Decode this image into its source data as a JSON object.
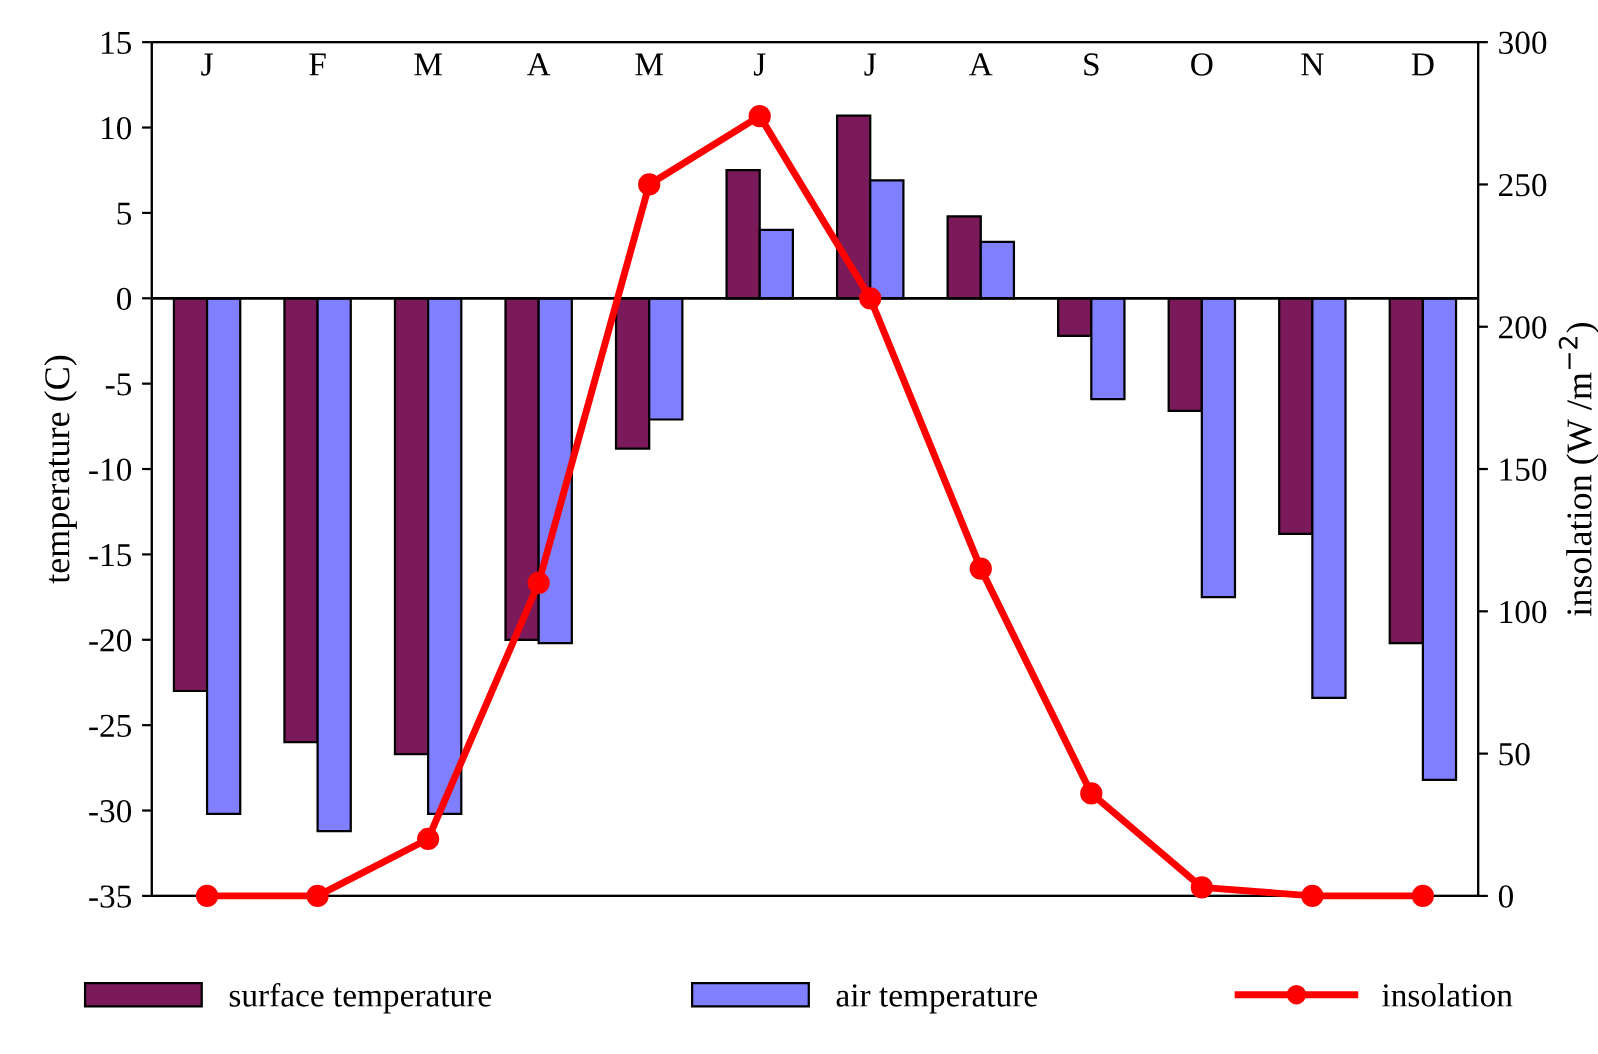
{
  "chart_data": {
    "type": "bar",
    "categories": [
      "J",
      "F",
      "M",
      "A",
      "M",
      "J",
      "J",
      "A",
      "S",
      "O",
      "N",
      "D"
    ],
    "series": [
      {
        "name": "surface temperature",
        "color": "#7b1a5a",
        "values": [
          -23,
          -26,
          -26.7,
          -20,
          -8.8,
          7.5,
          10.7,
          4.8,
          -2.2,
          -6.6,
          -13.8,
          -20.2
        ]
      },
      {
        "name": "air temperature",
        "color": "#7f7fff",
        "values": [
          -30.2,
          -31.2,
          -30.2,
          -20.2,
          -7.1,
          4,
          6.9,
          3.3,
          -5.9,
          -17.5,
          -23.4,
          -28.2
        ]
      },
      {
        "name": "insolation",
        "type": "line",
        "axis": "y2",
        "color": "#ff0000",
        "marker": "circle",
        "values": [
          0,
          0,
          20,
          110,
          250,
          274,
          210,
          115,
          36,
          3,
          0,
          0
        ]
      }
    ],
    "ylabel": "temperature (C)",
    "y2label": "insolation (W /m$^{−2}$)",
    "ylim": [
      -35,
      15
    ],
    "yticks": [
      -35,
      -30,
      -25,
      -20,
      -15,
      -10,
      -5,
      0,
      5,
      10,
      15
    ],
    "y2lim": [
      0,
      300
    ],
    "y2ticks": [
      0,
      50,
      100,
      150,
      200,
      250,
      300
    ],
    "ref_lines": [
      {
        "axis": "y",
        "value": 0,
        "color": "#000000"
      }
    ],
    "legend": "bottom"
  }
}
